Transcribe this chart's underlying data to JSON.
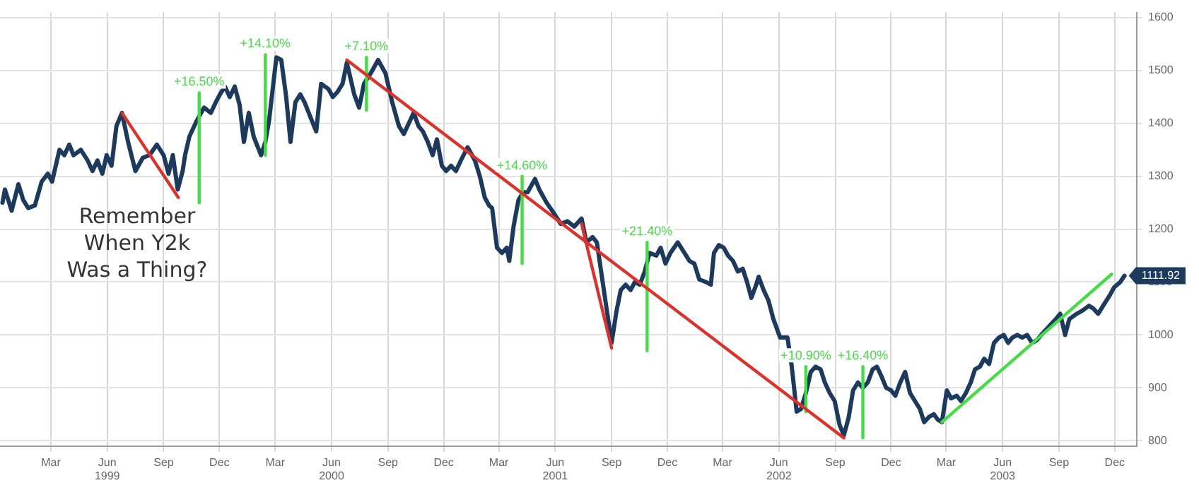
{
  "chart_data": {
    "type": "line",
    "xlim": [
      "1998-12-22",
      "2004-01-20"
    ],
    "ylim": [
      790,
      1610
    ],
    "yticks": [
      800,
      900,
      1000,
      1100,
      1200,
      1300,
      1400,
      1500,
      1600
    ],
    "xticks": [
      {
        "value": "1999-03-15",
        "label": "Mar"
      },
      {
        "value": "1999-06-15",
        "label": "Jun 1999"
      },
      {
        "value": "1999-09-15",
        "label": "Sep"
      },
      {
        "value": "1999-12-15",
        "label": "Dec"
      },
      {
        "value": "2000-03-15",
        "label": "Mar"
      },
      {
        "value": "2000-06-15",
        "label": "Jun 2000"
      },
      {
        "value": "2000-09-15",
        "label": "Sep"
      },
      {
        "value": "2000-12-15",
        "label": "Dec"
      },
      {
        "value": "2001-03-15",
        "label": "Mar"
      },
      {
        "value": "2001-06-15",
        "label": "Jun 2001"
      },
      {
        "value": "2001-09-15",
        "label": "Sep"
      },
      {
        "value": "2001-12-15",
        "label": "Dec"
      },
      {
        "value": "2002-03-15",
        "label": "Mar"
      },
      {
        "value": "2002-06-15",
        "label": "Jun 2002"
      },
      {
        "value": "2002-09-15",
        "label": "Sep"
      },
      {
        "value": "2002-12-15",
        "label": "Dec"
      },
      {
        "value": "2003-03-15",
        "label": "Mar"
      },
      {
        "value": "2003-06-15",
        "label": "Jun 2003"
      },
      {
        "value": "2003-09-15",
        "label": "Sep"
      },
      {
        "value": "2003-12-15",
        "label": "Dec"
      }
    ],
    "grid": true,
    "marker": "none",
    "line_style": "solid",
    "series": [
      {
        "color": "#1c3a5e",
        "x": [
          "1998-12-26",
          "1998-12-30",
          "1999-01-10",
          "1999-01-21",
          "1999-01-29",
          "1999-02-06",
          "1999-02-17",
          "1999-02-28",
          "1999-03-10",
          "1999-03-17",
          "1999-03-29",
          "1999-04-06",
          "1999-04-14",
          "1999-04-21",
          "1999-05-03",
          "1999-05-14",
          "1999-05-22",
          "1999-05-30",
          "1999-06-07",
          "1999-06-14",
          "1999-06-22",
          "1999-06-30",
          "1999-07-09",
          "1999-07-19",
          "1999-07-31",
          "1999-08-12",
          "1999-08-23",
          "1999-09-04",
          "1999-09-15",
          "1999-09-23",
          "1999-09-30",
          "1999-10-08",
          "1999-10-16",
          "1999-10-20",
          "1999-10-27",
          "1999-11-08",
          "1999-11-20",
          "1999-12-01",
          "1999-12-09",
          "1999-12-16",
          "1999-12-24",
          "2000-01-01",
          "2000-01-09",
          "2000-01-17",
          "2000-01-24",
          "2000-02-01",
          "2000-02-09",
          "2000-02-21",
          "2000-02-28",
          "2000-03-05",
          "2000-03-17",
          "2000-03-25",
          "2000-04-02",
          "2000-04-09",
          "2000-04-17",
          "2000-04-25",
          "2000-05-02",
          "2000-05-14",
          "2000-05-21",
          "2000-05-29",
          "2000-06-10",
          "2000-06-17",
          "2000-06-25",
          "2000-07-03",
          "2000-07-10",
          "2000-07-22",
          "2000-07-30",
          "2000-08-07",
          "2000-08-18",
          "2000-08-30",
          "2000-09-11",
          "2000-09-22",
          "2000-10-03",
          "2000-10-11",
          "2000-10-19",
          "2000-10-27",
          "2000-11-04",
          "2000-11-11",
          "2000-11-19",
          "2000-11-27",
          "2000-12-04",
          "2000-12-12",
          "2000-12-19",
          "2000-12-27",
          "2001-01-04",
          "2001-01-12",
          "2001-01-23",
          "2001-02-04",
          "2001-02-12",
          "2001-02-20",
          "2001-02-27",
          "2001-03-04",
          "2001-03-12",
          "2001-03-20",
          "2001-03-28",
          "2001-04-01",
          "2001-04-08",
          "2001-04-16",
          "2001-04-24",
          "2001-05-01",
          "2001-05-13",
          "2001-05-20",
          "2001-06-01",
          "2001-06-13",
          "2001-06-24",
          "2001-07-05",
          "2001-07-16",
          "2001-07-28",
          "2001-08-05",
          "2001-08-15",
          "2001-08-22",
          "2001-09-15",
          "2001-09-23",
          "2001-09-30",
          "2001-10-08",
          "2001-10-16",
          "2001-10-23",
          "2001-10-31",
          "2001-11-08",
          "2001-11-16",
          "2001-11-27",
          "2001-12-04",
          "2001-12-12",
          "2001-12-20",
          "2002-01-01",
          "2002-01-12",
          "2002-01-20",
          "2002-01-28",
          "2002-02-05",
          "2002-02-16",
          "2002-02-24",
          "2002-03-01",
          "2002-03-09",
          "2002-03-17",
          "2002-03-24",
          "2002-04-01",
          "2002-04-09",
          "2002-04-17",
          "2002-04-24",
          "2002-05-01",
          "2002-05-09",
          "2002-05-13",
          "2002-05-21",
          "2002-05-29",
          "2002-06-06",
          "2002-06-17",
          "2002-06-29",
          "2002-07-06",
          "2002-07-14",
          "2002-07-21",
          "2002-07-29",
          "2002-08-06",
          "2002-08-14",
          "2002-08-22",
          "2002-08-29",
          "2002-09-06",
          "2002-09-14",
          "2002-09-22",
          "2002-09-29",
          "2002-10-07",
          "2002-10-14",
          "2002-10-22",
          "2002-10-30",
          "2002-11-07",
          "2002-11-15",
          "2002-11-22",
          "2002-11-30",
          "2002-12-07",
          "2002-12-15",
          "2002-12-22",
          "2002-12-30",
          "2003-01-07",
          "2003-01-15",
          "2003-01-23",
          "2003-01-31",
          "2003-02-07",
          "2003-02-15",
          "2003-02-23",
          "2003-03-01",
          "2003-03-08",
          "2003-03-16",
          "2003-03-23",
          "2003-04-01",
          "2003-04-08",
          "2003-04-16",
          "2003-04-24",
          "2003-05-01",
          "2003-05-09",
          "2003-05-16",
          "2003-05-24",
          "2003-06-01",
          "2003-06-09",
          "2003-06-17",
          "2003-06-24",
          "2003-07-01",
          "2003-07-09",
          "2003-07-17",
          "2003-07-25",
          "2003-08-02",
          "2003-08-10",
          "2003-08-17",
          "2003-08-25",
          "2003-09-02",
          "2003-09-10",
          "2003-09-17",
          "2003-09-25",
          "2003-10-02",
          "2003-10-14",
          "2003-10-22",
          "2003-11-03",
          "2003-11-10",
          "2003-11-18",
          "2003-11-26",
          "2003-12-07",
          "2003-12-14",
          "2003-12-24",
          "2003-12-31"
        ],
        "values": [
          1250,
          1275,
          1235,
          1285,
          1255,
          1240,
          1245,
          1290,
          1305,
          1290,
          1350,
          1340,
          1360,
          1340,
          1350,
          1330,
          1310,
          1330,
          1305,
          1340,
          1320,
          1395,
          1420,
          1365,
          1310,
          1335,
          1340,
          1360,
          1340,
          1305,
          1340,
          1275,
          1310,
          1340,
          1375,
          1405,
          1430,
          1420,
          1440,
          1455,
          1470,
          1450,
          1470,
          1435,
          1365,
          1420,
          1375,
          1340,
          1365,
          1405,
          1525,
          1520,
          1450,
          1365,
          1440,
          1455,
          1440,
          1405,
          1385,
          1475,
          1465,
          1450,
          1460,
          1475,
          1515,
          1455,
          1430,
          1475,
          1495,
          1520,
          1495,
          1440,
          1395,
          1380,
          1400,
          1420,
          1395,
          1385,
          1365,
          1340,
          1370,
          1320,
          1310,
          1320,
          1310,
          1330,
          1355,
          1330,
          1300,
          1260,
          1245,
          1240,
          1165,
          1155,
          1165,
          1140,
          1205,
          1255,
          1270,
          1270,
          1295,
          1275,
          1250,
          1230,
          1210,
          1215,
          1205,
          1220,
          1175,
          1185,
          1175,
          985,
          1045,
          1085,
          1095,
          1085,
          1100,
          1095,
          1120,
          1155,
          1150,
          1165,
          1135,
          1155,
          1175,
          1155,
          1140,
          1135,
          1105,
          1100,
          1095,
          1155,
          1170,
          1165,
          1150,
          1140,
          1120,
          1125,
          1100,
          1070,
          1095,
          1110,
          1085,
          1065,
          1030,
          995,
          995,
          940,
          855,
          860,
          890,
          930,
          940,
          935,
          910,
          890,
          875,
          830,
          810,
          845,
          895,
          910,
          900,
          910,
          935,
          940,
          920,
          900,
          895,
          885,
          910,
          930,
          890,
          875,
          860,
          835,
          845,
          850,
          840,
          835,
          895,
          880,
          885,
          875,
          890,
          910,
          935,
          940,
          955,
          945,
          985,
          995,
          1000,
          985,
          995,
          1000,
          995,
          1000,
          985,
          990,
          1000,
          1010,
          1020,
          1030,
          1040,
          1000,
          1030,
          1040,
          1045,
          1055,
          1050,
          1040,
          1055,
          1075,
          1090,
          1100,
          1111.92
        ],
        "value_labels": [
          null,
          null,
          null,
          null,
          null,
          null,
          null,
          null,
          null,
          null,
          null,
          null,
          null,
          null,
          null,
          null,
          null,
          null,
          null,
          null,
          null,
          null,
          null,
          null,
          null,
          null,
          null,
          null,
          null,
          null,
          null,
          null,
          null,
          null,
          null,
          null,
          null,
          null,
          null,
          null,
          null,
          null,
          null,
          null,
          null,
          null,
          null,
          null,
          null,
          null,
          null,
          null,
          null,
          null,
          null,
          null,
          null,
          null,
          null,
          null,
          null,
          null,
          null,
          null,
          null,
          null,
          null,
          null,
          null,
          null,
          null,
          null,
          null,
          null,
          null,
          null,
          null,
          null,
          null,
          null,
          null,
          null,
          null,
          null,
          null,
          null,
          null,
          null,
          null,
          null,
          null,
          null,
          null,
          null,
          null,
          null,
          null,
          null,
          null,
          null,
          null,
          null,
          null,
          null,
          null,
          null,
          null,
          null,
          null,
          null,
          null,
          null,
          null,
          null,
          null,
          null,
          null,
          null,
          null,
          null,
          null,
          null,
          null,
          null,
          null,
          null,
          null,
          null,
          null,
          null,
          null,
          null,
          null,
          null,
          null,
          null,
          null,
          null,
          null,
          null,
          null,
          null,
          null,
          null,
          null,
          null,
          null,
          null,
          null,
          null,
          null,
          null,
          null,
          null,
          null,
          null,
          null,
          null,
          null,
          null,
          null,
          null,
          null,
          null,
          null,
          null,
          null,
          null,
          null,
          null,
          null,
          null,
          null,
          null,
          null,
          null,
          null,
          null,
          null,
          null,
          null,
          null,
          null,
          null,
          null,
          null,
          null,
          null,
          null,
          null,
          null,
          null,
          null,
          null,
          null,
          null,
          null,
          null,
          null,
          null,
          null,
          null,
          null,
          null,
          null,
          null,
          null,
          null,
          null,
          null,
          null,
          null,
          null,
          null,
          null,
          null,
          "1111.92"
        ]
      },
      {
        "color": "#e0302a",
        "x": [
          "1999-07-09",
          "1999-10-09"
        ],
        "values": [
          1420,
          1260
        ]
      },
      {
        "color": "#e0302a",
        "x": [
          "2000-07-10",
          "2002-09-29"
        ],
        "values": [
          1520,
          805
        ]
      },
      {
        "color": "#e0302a",
        "x": [
          "2001-07-28",
          "2001-09-15"
        ],
        "values": [
          1210,
          975
        ]
      },
      {
        "color": "#44dd44",
        "x": [
          "1999-11-12",
          "1999-11-12"
        ],
        "values": [
          1250,
          1458
        ]
      },
      {
        "color": "#44dd44",
        "x": [
          "2000-02-28",
          "2000-02-28"
        ],
        "values": [
          1340,
          1530
        ]
      },
      {
        "color": "#44dd44",
        "x": [
          "2000-08-11",
          "2000-08-11"
        ],
        "values": [
          1425,
          1525
        ]
      },
      {
        "color": "#44dd44",
        "x": [
          "2001-04-22",
          "2001-04-22"
        ],
        "values": [
          1135,
          1300
        ]
      },
      {
        "color": "#44dd44",
        "x": [
          "2001-11-12",
          "2001-11-12"
        ],
        "values": [
          970,
          1175
        ]
      },
      {
        "color": "#44dd44",
        "x": [
          "2002-07-29",
          "2002-07-29"
        ],
        "values": [
          855,
          940
        ]
      },
      {
        "color": "#44dd44",
        "x": [
          "2002-10-30",
          "2002-10-30"
        ],
        "values": [
          805,
          940
        ]
      },
      {
        "color": "#44dd44",
        "x": [
          "2003-03-08",
          "2003-12-10"
        ],
        "values": [
          835,
          1115
        ]
      }
    ],
    "annotations": [
      "Remember When Y2k Was a Thing?",
      {
        "text": "+16.50%",
        "x": "1999-11-12",
        "y": 1458
      },
      {
        "text": "+14.10%",
        "x": "2000-02-28",
        "y": 1530
      },
      {
        "text": "+7.10%",
        "x": "2000-08-11",
        "y": 1525
      },
      {
        "text": "+14.60%",
        "x": "2001-04-22",
        "y": 1300
      },
      {
        "text": "+21.40%",
        "x": "2001-11-12",
        "y": 1175
      },
      {
        "text": "+10.90%",
        "x": "2002-07-29",
        "y": 940
      },
      {
        "text": "+16.40%",
        "x": "2002-10-30",
        "y": 940
      }
    ]
  }
}
